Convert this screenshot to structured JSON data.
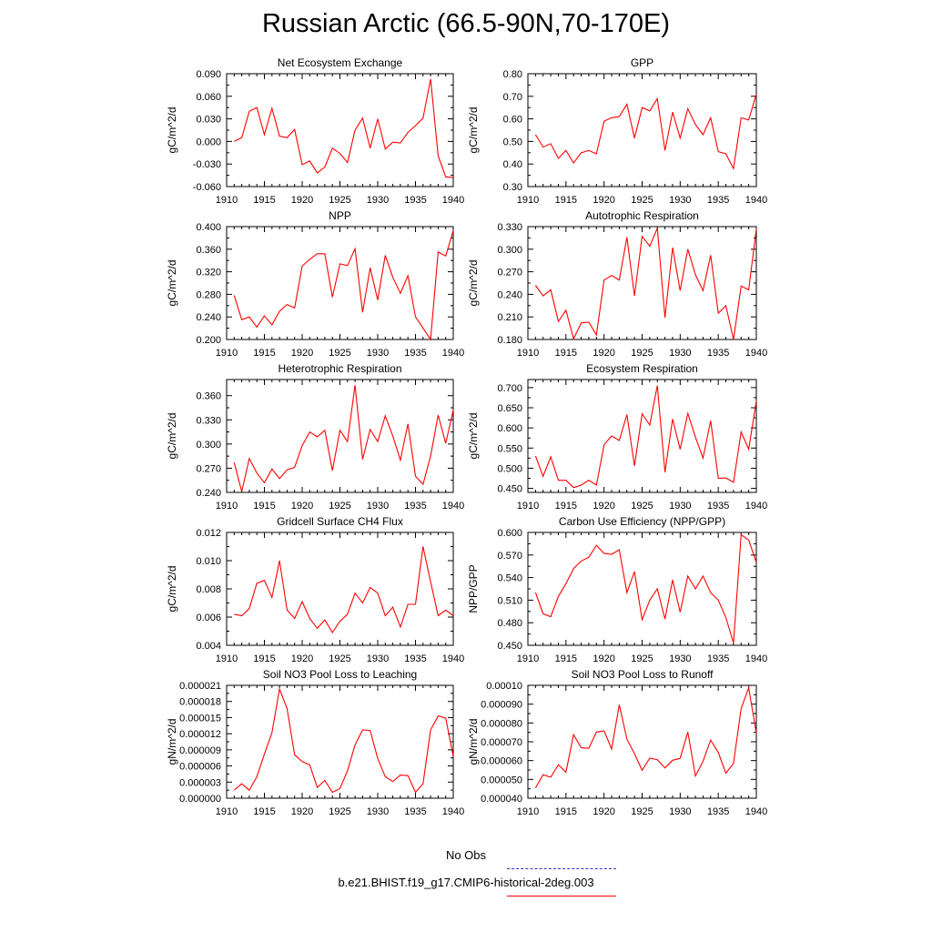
{
  "title": "Russian Arctic (66.5-90N,70-170E)",
  "colors": {
    "series": "#ff0000",
    "obs": "#3333cc",
    "axis": "#000000"
  },
  "legend": {
    "obs_label": "No Obs",
    "model_label": "b.e21.BHIST.f19_g17.CMIP6-historical-2deg.003"
  },
  "chart_data": [
    {
      "type": "line",
      "title": "Net Ecosystem Exchange",
      "ylabel": "gC/m^2/d",
      "x": [
        1911,
        1912,
        1913,
        1914,
        1915,
        1916,
        1917,
        1918,
        1919,
        1920,
        1921,
        1922,
        1923,
        1924,
        1925,
        1926,
        1927,
        1928,
        1929,
        1930,
        1931,
        1932,
        1933,
        1934,
        1935,
        1936,
        1937,
        1938,
        1939,
        1940
      ],
      "y": [
        0.0,
        0.005,
        0.04,
        0.045,
        0.009,
        0.044,
        0.007,
        0.005,
        0.016,
        -0.031,
        -0.026,
        -0.042,
        -0.034,
        -0.009,
        -0.016,
        -0.028,
        0.015,
        0.031,
        -0.009,
        0.03,
        -0.01,
        -0.001,
        -0.002,
        0.012,
        0.021,
        0.031,
        0.083,
        -0.019,
        -0.047,
        -0.048
      ],
      "xlim": [
        1910,
        1940
      ],
      "ylim": [
        -0.06,
        0.09
      ],
      "yticks": [
        "-0.060",
        "-0.030",
        "0.000",
        "0.030",
        "0.060",
        "0.090"
      ],
      "xticks": [
        "1910",
        "1915",
        "1920",
        "1925",
        "1930",
        "1935",
        "1940"
      ]
    },
    {
      "type": "line",
      "title": "GPP",
      "ylabel": "gC/m^2/d",
      "x": [
        1911,
        1912,
        1913,
        1914,
        1915,
        1916,
        1917,
        1918,
        1919,
        1920,
        1921,
        1922,
        1923,
        1924,
        1925,
        1926,
        1927,
        1928,
        1929,
        1930,
        1931,
        1932,
        1933,
        1934,
        1935,
        1936,
        1937,
        1938,
        1939,
        1940
      ],
      "y": [
        0.53,
        0.475,
        0.49,
        0.425,
        0.46,
        0.405,
        0.45,
        0.46,
        0.445,
        0.59,
        0.605,
        0.61,
        0.665,
        0.515,
        0.65,
        0.635,
        0.69,
        0.46,
        0.63,
        0.515,
        0.645,
        0.575,
        0.53,
        0.605,
        0.455,
        0.445,
        0.38,
        0.605,
        0.595,
        0.71
      ],
      "xlim": [
        1910,
        1940
      ],
      "ylim": [
        0.3,
        0.8
      ],
      "yticks": [
        "0.30",
        "0.40",
        "0.50",
        "0.60",
        "0.70",
        "0.80"
      ],
      "xticks": [
        "1910",
        "1915",
        "1920",
        "1925",
        "1930",
        "1935",
        "1940"
      ]
    },
    {
      "type": "line",
      "title": "NPP",
      "ylabel": "gC/m^2/d",
      "x": [
        1911,
        1912,
        1913,
        1914,
        1915,
        1916,
        1917,
        1918,
        1919,
        1920,
        1921,
        1922,
        1923,
        1924,
        1925,
        1926,
        1927,
        1928,
        1929,
        1930,
        1931,
        1932,
        1933,
        1934,
        1935,
        1936,
        1937,
        1938,
        1939,
        1940
      ],
      "y": [
        0.278,
        0.235,
        0.24,
        0.222,
        0.242,
        0.226,
        0.25,
        0.262,
        0.256,
        0.33,
        0.342,
        0.352,
        0.352,
        0.275,
        0.334,
        0.331,
        0.361,
        0.248,
        0.327,
        0.27,
        0.349,
        0.31,
        0.282,
        0.313,
        0.24,
        0.22,
        0.2,
        0.355,
        0.348,
        0.393
      ],
      "xlim": [
        1910,
        1940
      ],
      "ylim": [
        0.2,
        0.4
      ],
      "yticks": [
        "0.200",
        "0.240",
        "0.280",
        "0.320",
        "0.360",
        "0.400"
      ],
      "xticks": [
        "1910",
        "1915",
        "1920",
        "1925",
        "1930",
        "1935",
        "1940"
      ]
    },
    {
      "type": "line",
      "title": "Autotrophic Respiration",
      "ylabel": "gC/m^2/d",
      "x": [
        1911,
        1912,
        1913,
        1914,
        1915,
        1916,
        1917,
        1918,
        1919,
        1920,
        1921,
        1922,
        1923,
        1924,
        1925,
        1926,
        1927,
        1928,
        1929,
        1930,
        1931,
        1932,
        1933,
        1934,
        1935,
        1936,
        1937,
        1938,
        1939,
        1940
      ],
      "y": [
        0.252,
        0.238,
        0.246,
        0.204,
        0.219,
        0.181,
        0.202,
        0.203,
        0.186,
        0.259,
        0.265,
        0.259,
        0.316,
        0.238,
        0.317,
        0.304,
        0.328,
        0.209,
        0.302,
        0.245,
        0.3,
        0.266,
        0.245,
        0.292,
        0.215,
        0.225,
        0.18,
        0.251,
        0.246,
        0.327
      ],
      "xlim": [
        1910,
        1940
      ],
      "ylim": [
        0.18,
        0.33
      ],
      "yticks": [
        "0.180",
        "0.210",
        "0.240",
        "0.270",
        "0.300",
        "0.330"
      ],
      "xticks": [
        "1910",
        "1915",
        "1920",
        "1925",
        "1930",
        "1935",
        "1940"
      ]
    },
    {
      "type": "line",
      "title": "Heterotrophic Respiration",
      "ylabel": "gC/m^2/d",
      "x": [
        1911,
        1912,
        1913,
        1914,
        1915,
        1916,
        1917,
        1918,
        1919,
        1920,
        1921,
        1922,
        1923,
        1924,
        1925,
        1926,
        1927,
        1928,
        1929,
        1930,
        1931,
        1932,
        1933,
        1934,
        1935,
        1936,
        1937,
        1938,
        1939,
        1940
      ],
      "y": [
        0.277,
        0.241,
        0.282,
        0.264,
        0.252,
        0.269,
        0.257,
        0.268,
        0.271,
        0.298,
        0.315,
        0.309,
        0.317,
        0.267,
        0.317,
        0.303,
        0.373,
        0.281,
        0.318,
        0.303,
        0.335,
        0.31,
        0.28,
        0.325,
        0.26,
        0.25,
        0.285,
        0.336,
        0.301,
        0.342
      ],
      "xlim": [
        1910,
        1940
      ],
      "ylim": [
        0.24,
        0.38
      ],
      "yticks": [
        "0.240",
        "0.270",
        "0.300",
        "0.330",
        "0.360"
      ],
      "xticks": [
        "1910",
        "1915",
        "1920",
        "1925",
        "1930",
        "1935",
        "1940"
      ]
    },
    {
      "type": "line",
      "title": "Ecosystem Respiration",
      "ylabel": "gC/m^2/d",
      "x": [
        1911,
        1912,
        1913,
        1914,
        1915,
        1916,
        1917,
        1918,
        1919,
        1920,
        1921,
        1922,
        1923,
        1924,
        1925,
        1926,
        1927,
        1928,
        1929,
        1930,
        1931,
        1932,
        1933,
        1934,
        1935,
        1936,
        1937,
        1938,
        1939,
        1940
      ],
      "y": [
        0.53,
        0.48,
        0.528,
        0.47,
        0.47,
        0.452,
        0.458,
        0.47,
        0.458,
        0.558,
        0.58,
        0.569,
        0.633,
        0.506,
        0.635,
        0.607,
        0.705,
        0.49,
        0.622,
        0.547,
        0.636,
        0.577,
        0.525,
        0.618,
        0.475,
        0.476,
        0.465,
        0.59,
        0.547,
        0.667
      ],
      "xlim": [
        1910,
        1940
      ],
      "ylim": [
        0.44,
        0.72
      ],
      "yticks": [
        "0.450",
        "0.500",
        "0.550",
        "0.600",
        "0.650",
        "0.700"
      ],
      "xticks": [
        "1910",
        "1915",
        "1920",
        "1925",
        "1930",
        "1935",
        "1940"
      ]
    },
    {
      "type": "line",
      "title": "Gridcell Surface CH4 Flux",
      "ylabel": "gC/m^2/d",
      "x": [
        1911,
        1912,
        1913,
        1914,
        1915,
        1916,
        1917,
        1918,
        1919,
        1920,
        1921,
        1922,
        1923,
        1924,
        1925,
        1926,
        1927,
        1928,
        1929,
        1930,
        1931,
        1932,
        1933,
        1934,
        1935,
        1936,
        1937,
        1938,
        1939,
        1940
      ],
      "y": [
        0.0062,
        0.0061,
        0.0066,
        0.0084,
        0.0086,
        0.0074,
        0.01,
        0.0065,
        0.0059,
        0.0071,
        0.0059,
        0.0052,
        0.0058,
        0.0049,
        0.0057,
        0.0062,
        0.0077,
        0.007,
        0.0081,
        0.0077,
        0.0061,
        0.0067,
        0.0053,
        0.0069,
        0.0069,
        0.011,
        0.0085,
        0.0061,
        0.0065,
        0.0061
      ],
      "xlim": [
        1910,
        1940
      ],
      "ylim": [
        0.004,
        0.012
      ],
      "yticks": [
        "0.004",
        "0.006",
        "0.008",
        "0.010",
        "0.012"
      ],
      "xticks": [
        "1910",
        "1915",
        "1920",
        "1925",
        "1930",
        "1935",
        "1940"
      ]
    },
    {
      "type": "line",
      "title": "Carbon Use Efficiency (NPP/GPP)",
      "ylabel": "NPP/GPP",
      "x": [
        1911,
        1912,
        1913,
        1914,
        1915,
        1916,
        1917,
        1918,
        1919,
        1920,
        1921,
        1922,
        1923,
        1924,
        1925,
        1926,
        1927,
        1928,
        1929,
        1930,
        1931,
        1932,
        1933,
        1934,
        1935,
        1936,
        1937,
        1938,
        1939,
        1940
      ],
      "y": [
        0.52,
        0.492,
        0.488,
        0.515,
        0.532,
        0.552,
        0.562,
        0.567,
        0.583,
        0.572,
        0.571,
        0.577,
        0.52,
        0.548,
        0.484,
        0.51,
        0.525,
        0.485,
        0.537,
        0.494,
        0.542,
        0.525,
        0.542,
        0.52,
        0.51,
        0.487,
        0.453,
        0.597,
        0.59,
        0.56
      ],
      "xlim": [
        1910,
        1940
      ],
      "ylim": [
        0.45,
        0.6
      ],
      "yticks": [
        "0.450",
        "0.480",
        "0.510",
        "0.540",
        "0.570",
        "0.600"
      ],
      "xticks": [
        "1910",
        "1915",
        "1920",
        "1925",
        "1930",
        "1935",
        "1940"
      ]
    },
    {
      "type": "line",
      "title": "Soil NO3 Pool Loss to Leaching",
      "ylabel": "gN/m^2/d",
      "x": [
        1911,
        1912,
        1913,
        1914,
        1915,
        1916,
        1917,
        1918,
        1919,
        1920,
        1921,
        1922,
        1923,
        1924,
        1925,
        1926,
        1927,
        1928,
        1929,
        1930,
        1931,
        1932,
        1933,
        1934,
        1935,
        1936,
        1937,
        1938,
        1939,
        1940
      ],
      "y": [
        1.5e-06,
        2.7e-06,
        1.5e-06,
        4e-06,
        8.2e-06,
        1.22e-05,
        2.03e-05,
        1.67e-05,
        8.1e-06,
        6.8e-06,
        6.2e-06,
        2e-06,
        3.3e-06,
        1.1e-06,
        1.8e-06,
        5.1e-06,
        9.9e-06,
        1.27e-05,
        1.26e-05,
        7.4e-06,
        4e-06,
        3.1e-06,
        4.3e-06,
        4.2e-06,
        1.1e-06,
        2.7e-06,
        1.27e-05,
        1.53e-05,
        1.49e-05,
        7.8e-06
      ],
      "xlim": [
        1910,
        1940
      ],
      "ylim": [
        0.0,
        2.1e-05
      ],
      "yticks": [
        "0.000000",
        "0.000003",
        "0.000006",
        "0.000009",
        "0.000012",
        "0.000015",
        "0.000018",
        "0.000021"
      ],
      "xticks": [
        "1910",
        "1915",
        "1920",
        "1925",
        "1930",
        "1935",
        "1940"
      ]
    },
    {
      "type": "line",
      "title": "Soil NO3 Pool Loss to Runoff",
      "ylabel": "gN/m^2/d",
      "x": [
        1911,
        1912,
        1913,
        1914,
        1915,
        1916,
        1917,
        1918,
        1919,
        1920,
        1921,
        1922,
        1923,
        1924,
        1925,
        1926,
        1927,
        1928,
        1929,
        1930,
        1931,
        1932,
        1933,
        1934,
        1935,
        1936,
        1937,
        1938,
        1939,
        1940
      ],
      "y": [
        4.55e-05,
        5.25e-05,
        5.12e-05,
        5.78e-05,
        5.38e-05,
        7.38e-05,
        6.68e-05,
        6.65e-05,
        7.52e-05,
        7.58e-05,
        6.62e-05,
        8.97e-05,
        7.14e-05,
        6.37e-05,
        5.48e-05,
        6.13e-05,
        6.05e-05,
        5.61e-05,
        6.02e-05,
        6.12e-05,
        7.52e-05,
        5.18e-05,
        5.96e-05,
        7.09e-05,
        6.43e-05,
        5.33e-05,
        5.85e-05,
        8.77e-05,
        9.87e-05,
        7.45e-05
      ],
      "xlim": [
        1910,
        1940
      ],
      "ylim": [
        4e-05,
        0.0001
      ],
      "yticks": [
        "0.000040",
        "0.000050",
        "0.000060",
        "0.000070",
        "0.000080",
        "0.000090",
        "0.00010"
      ],
      "xticks": [
        "1910",
        "1915",
        "1920",
        "1925",
        "1930",
        "1935",
        "1940"
      ]
    }
  ]
}
